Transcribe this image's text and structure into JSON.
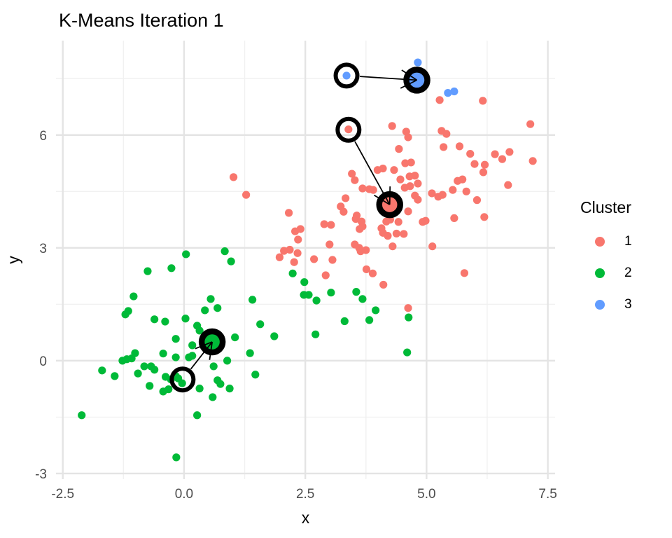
{
  "page": {
    "title": "K-Means Iteration 1"
  },
  "colors": {
    "cluster1": "#F8766D",
    "cluster2": "#00BA38",
    "cluster3": "#619CFF",
    "grid_major": "#E4E4E4",
    "grid_minor": "#F1F1F1",
    "tick_label": "#4D4D4D",
    "centroid_ring": "#000000",
    "arrow": "#000000",
    "background": "#FFFFFF"
  },
  "legend": {
    "title": "Cluster",
    "items": [
      {
        "label": "1",
        "color": "#F8766D"
      },
      {
        "label": "2",
        "color": "#00BA38"
      },
      {
        "label": "3",
        "color": "#619CFF"
      }
    ]
  },
  "chart_data": {
    "type": "scatter",
    "title": "K-Means Iteration 1",
    "xlabel": "x",
    "ylabel": "y",
    "xlim": [
      -2.64,
      7.65
    ],
    "ylim": [
      -3.15,
      8.51
    ],
    "x_ticks": [
      -2.5,
      0,
      2.5,
      5,
      7.5
    ],
    "x_tick_labels": [
      "-2.5",
      "0.0",
      "2.5",
      "5.0",
      "7.5"
    ],
    "y_ticks": [
      -3,
      0,
      3,
      6
    ],
    "y_tick_labels": [
      "-3",
      "0",
      "3",
      "6"
    ],
    "x_minor_ticks": [
      -1.25,
      1.25,
      3.75,
      6.25
    ],
    "y_minor_ticks": [
      -1.5,
      1.5,
      4.5,
      7.5
    ],
    "grid": true,
    "legend_position": "right",
    "series": [
      {
        "name": "1",
        "color": "#F8766D",
        "points": [
          [
            1.02,
            4.88
          ],
          [
            1.28,
            4.41
          ],
          [
            5.27,
            6.93
          ],
          [
            6.16,
            6.91
          ],
          [
            7.14,
            6.29
          ],
          [
            4.29,
            6.24
          ],
          [
            3.39,
            6.15
          ],
          [
            5.31,
            6.11
          ],
          [
            5.41,
            6.03
          ],
          [
            4.58,
            6.09
          ],
          [
            4.62,
            5.94
          ],
          [
            4.43,
            5.63
          ],
          [
            5.35,
            5.68
          ],
          [
            5.68,
            5.7
          ],
          [
            5.9,
            5.5
          ],
          [
            6.41,
            5.49
          ],
          [
            6.56,
            5.36
          ],
          [
            6.71,
            5.55
          ],
          [
            7.19,
            5.31
          ],
          [
            5.99,
            5.23
          ],
          [
            6.2,
            5.21
          ],
          [
            6.17,
            5.01
          ],
          [
            3.46,
            4.97
          ],
          [
            3.52,
            4.8
          ],
          [
            3.99,
            5.07
          ],
          [
            4.1,
            5.11
          ],
          [
            4.33,
            5.07
          ],
          [
            4.56,
            5.25
          ],
          [
            4.68,
            5.27
          ],
          [
            4.65,
            4.9
          ],
          [
            4.76,
            4.92
          ],
          [
            4.46,
            4.82
          ],
          [
            4.82,
            4.71
          ],
          [
            4.55,
            4.6
          ],
          [
            4.66,
            4.64
          ],
          [
            5.64,
            4.78
          ],
          [
            5.74,
            4.82
          ],
          [
            6.68,
            4.67
          ],
          [
            3.68,
            4.58
          ],
          [
            3.82,
            4.56
          ],
          [
            3.9,
            4.54
          ],
          [
            5.54,
            4.54
          ],
          [
            5.82,
            4.5
          ],
          [
            5.11,
            4.45
          ],
          [
            5.24,
            4.36
          ],
          [
            5.33,
            4.41
          ],
          [
            6.04,
            4.27
          ],
          [
            4.76,
            4.39
          ],
          [
            4.82,
            4.28
          ],
          [
            4.39,
            4.0
          ],
          [
            4.62,
            3.97
          ],
          [
            3.33,
            4.32
          ],
          [
            3.23,
            4.1
          ],
          [
            3.29,
            3.96
          ],
          [
            3.56,
            3.86
          ],
          [
            3.62,
            3.5
          ],
          [
            3.54,
            3.77
          ],
          [
            3.66,
            3.7
          ],
          [
            3.68,
            3.57
          ],
          [
            2.89,
            3.63
          ],
          [
            3.03,
            3.61
          ],
          [
            2.16,
            3.93
          ],
          [
            2.29,
            3.44
          ],
          [
            2.4,
            3.5
          ],
          [
            2.35,
            3.22
          ],
          [
            4.17,
            3.7
          ],
          [
            4.25,
            3.75
          ],
          [
            4.42,
            3.69
          ],
          [
            4.92,
            3.69
          ],
          [
            4.98,
            3.72
          ],
          [
            5.57,
            3.79
          ],
          [
            6.19,
            3.82
          ],
          [
            4.1,
            3.4
          ],
          [
            4.2,
            3.32
          ],
          [
            4.38,
            3.38
          ],
          [
            4.53,
            3.37
          ],
          [
            4.07,
            3.52
          ],
          [
            3.0,
            3.09
          ],
          [
            3.52,
            3.09
          ],
          [
            3.61,
            3.0
          ],
          [
            3.64,
            2.91
          ],
          [
            3.75,
            2.94
          ],
          [
            5.12,
            3.04
          ],
          [
            4.3,
            3.04
          ],
          [
            2.68,
            2.7
          ],
          [
            3.06,
            2.68
          ],
          [
            1.97,
            2.75
          ],
          [
            2.06,
            2.92
          ],
          [
            2.18,
            2.95
          ],
          [
            2.34,
            2.86
          ],
          [
            2.27,
            2.62
          ],
          [
            2.92,
            2.27
          ],
          [
            3.76,
            2.43
          ],
          [
            3.89,
            2.32
          ],
          [
            5.78,
            2.33
          ],
          [
            4.11,
            2.02
          ],
          [
            4.62,
            1.4
          ]
        ]
      },
      {
        "name": "2",
        "color": "#00BA38",
        "points": [
          [
            0.04,
            2.83
          ],
          [
            0.84,
            2.91
          ],
          [
            0.97,
            2.64
          ],
          [
            -0.75,
            2.38
          ],
          [
            -0.26,
            2.46
          ],
          [
            2.24,
            2.32
          ],
          [
            2.48,
            2.09
          ],
          [
            -1.04,
            1.71
          ],
          [
            0.55,
            1.64
          ],
          [
            1.41,
            1.62
          ],
          [
            2.47,
            1.75
          ],
          [
            2.57,
            1.75
          ],
          [
            2.73,
            1.6
          ],
          [
            3.03,
            1.81
          ],
          [
            3.55,
            1.83
          ],
          [
            3.68,
            1.64
          ],
          [
            3.95,
            1.34
          ],
          [
            3.31,
            1.05
          ],
          [
            3.82,
            1.08
          ],
          [
            -1.15,
            1.32
          ],
          [
            -1.21,
            1.23
          ],
          [
            0.43,
            1.34
          ],
          [
            0.69,
            1.4
          ],
          [
            -0.61,
            1.1
          ],
          [
            -0.39,
            1.04
          ],
          [
            0.03,
            1.12
          ],
          [
            1.57,
            0.97
          ],
          [
            0.27,
            0.93
          ],
          [
            0.32,
            0.8
          ],
          [
            1.05,
            0.62
          ],
          [
            1.86,
            0.65
          ],
          [
            2.71,
            0.7
          ],
          [
            4.63,
            1.15
          ],
          [
            4.6,
            0.22
          ],
          [
            -0.17,
            0.58
          ],
          [
            0.17,
            0.41
          ],
          [
            -1.01,
            0.2
          ],
          [
            -1.08,
            0.06
          ],
          [
            -1.27,
            0.0
          ],
          [
            -1.18,
            0.04
          ],
          [
            -0.43,
            0.19
          ],
          [
            -0.17,
            0.09
          ],
          [
            0.1,
            0.09
          ],
          [
            0.17,
            0.13
          ],
          [
            1.36,
            0.2
          ],
          [
            0.89,
            0.0
          ],
          [
            0.61,
            -0.15
          ],
          [
            -0.82,
            -0.15
          ],
          [
            -0.68,
            -0.15
          ],
          [
            -0.95,
            -0.34
          ],
          [
            -0.61,
            -0.24
          ],
          [
            -1.69,
            -0.26
          ],
          [
            -1.43,
            -0.41
          ],
          [
            -0.38,
            -0.43
          ],
          [
            -0.27,
            -0.5
          ],
          [
            -0.12,
            -0.47
          ],
          [
            -0.17,
            -0.41
          ],
          [
            -0.04,
            -0.6
          ],
          [
            1.47,
            -0.37
          ],
          [
            -0.71,
            -0.67
          ],
          [
            -0.43,
            -0.82
          ],
          [
            -0.32,
            -0.76
          ],
          [
            0.32,
            -0.74
          ],
          [
            0.59,
            -0.97
          ],
          [
            0.69,
            -0.52
          ],
          [
            0.75,
            -0.62
          ],
          [
            0.94,
            -0.74
          ],
          [
            0.27,
            -1.45
          ],
          [
            -2.11,
            -1.45
          ],
          [
            -0.16,
            -2.57
          ]
        ]
      },
      {
        "name": "3",
        "color": "#619CFF",
        "points": [
          [
            3.35,
            7.58
          ],
          [
            4.82,
            7.93
          ],
          [
            5.44,
            7.12
          ],
          [
            5.57,
            7.16
          ]
        ]
      }
    ],
    "centroids_old": [
      {
        "cluster": "1",
        "x": 3.39,
        "y": 6.14
      },
      {
        "cluster": "2",
        "x": -0.03,
        "y": -0.5
      },
      {
        "cluster": "3",
        "x": 3.35,
        "y": 7.58
      }
    ],
    "centroids_new": [
      {
        "cluster": "1",
        "x": 4.24,
        "y": 4.15,
        "color": "#F8766D"
      },
      {
        "cluster": "2",
        "x": 0.58,
        "y": 0.5,
        "color": "#00BA38"
      },
      {
        "cluster": "3",
        "x": 4.8,
        "y": 7.46,
        "color": "#619CFF"
      }
    ],
    "arrows": [
      {
        "from": [
          3.39,
          6.14
        ],
        "to": [
          4.24,
          4.15
        ]
      },
      {
        "from": [
          -0.03,
          -0.5
        ],
        "to": [
          0.58,
          0.5
        ]
      },
      {
        "from": [
          3.35,
          7.58
        ],
        "to": [
          4.8,
          7.46
        ]
      }
    ]
  }
}
